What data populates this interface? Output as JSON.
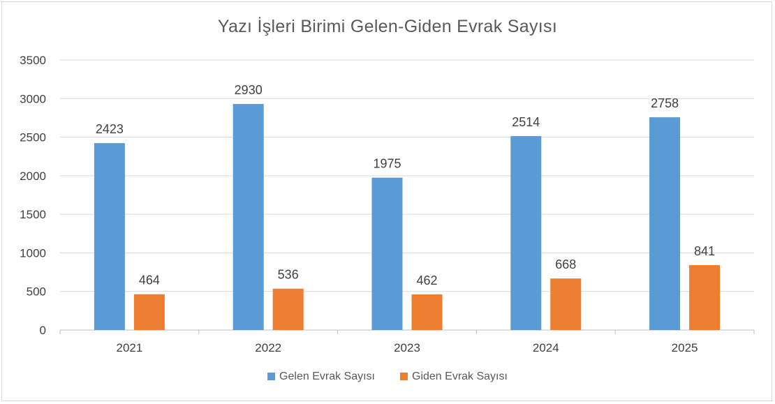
{
  "chart_data": {
    "type": "bar",
    "title": "Yazı İşleri Birimi Gelen-Giden Evrak Sayısı",
    "categories": [
      "2021",
      "2022",
      "2023",
      "2024",
      "2025"
    ],
    "series": [
      {
        "name": "Gelen Evrak Sayısı",
        "color": "#5b9bd5",
        "values": [
          2423,
          2930,
          1975,
          2514,
          2758
        ]
      },
      {
        "name": "Giden Evrak Sayısı",
        "color": "#ed7d31",
        "values": [
          464,
          536,
          462,
          668,
          841
        ]
      }
    ],
    "ylim": [
      0,
      3500
    ],
    "yticks": [
      0,
      500,
      1000,
      1500,
      2000,
      2500,
      3000,
      3500
    ],
    "grid": true,
    "legend": "bottom",
    "data_labels": true
  }
}
